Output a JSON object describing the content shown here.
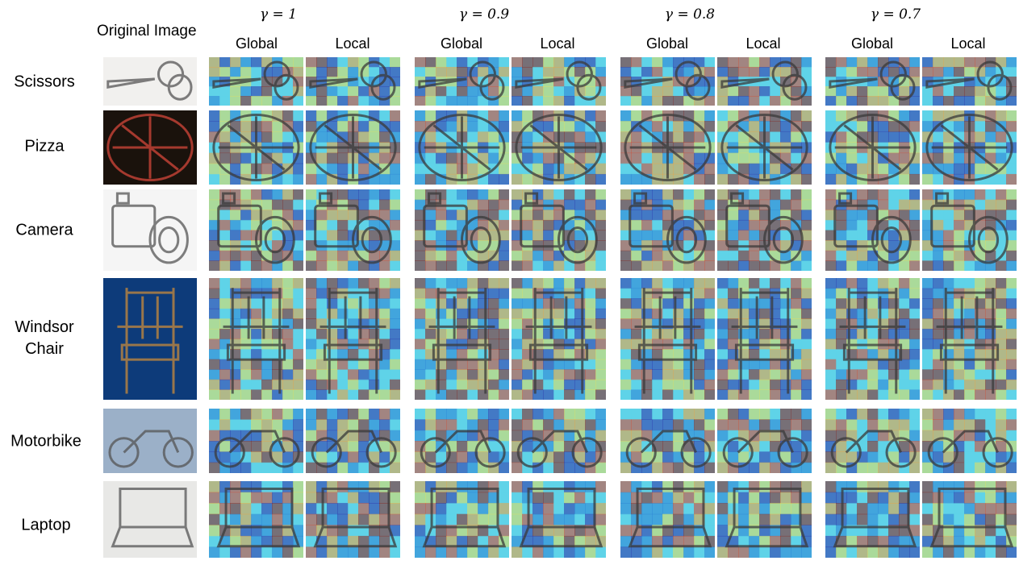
{
  "header": {
    "original_label": "Original Image",
    "gamma_labels": [
      "γ = 1",
      "γ = 0.9",
      "γ = 0.8",
      "γ = 0.7"
    ],
    "sub_labels": [
      "Global",
      "Local",
      "Global",
      "Local",
      "Global",
      "Local",
      "Global",
      "Local"
    ]
  },
  "rows": [
    {
      "line1": "Scissors",
      "line2": "",
      "subject": "scissors-image",
      "bg": "#f1f0ee"
    },
    {
      "line1": "Pizza",
      "line2": "",
      "subject": "pizza-image",
      "bg": "#1a120c"
    },
    {
      "line1": "Camera",
      "line2": "",
      "subject": "camera-image",
      "bg": "#f5f5f5"
    },
    {
      "line1": "Windsor",
      "line2": "Chair",
      "subject": "chair-image",
      "bg": "#0d3b7a"
    },
    {
      "line1": "Motorbike",
      "line2": "",
      "subject": "motorbike-image",
      "bg": "#9bb0c8"
    },
    {
      "line1": "Laptop",
      "line2": "",
      "subject": "laptop-image",
      "bg": "#e8e8e6"
    }
  ],
  "heatmap_colors": [
    "#2b2fa8",
    "#2a7fd4",
    "#5fd3e8",
    "#e8e05a",
    "#f2a33a",
    "#d9452b",
    "#8a1f1a"
  ]
}
